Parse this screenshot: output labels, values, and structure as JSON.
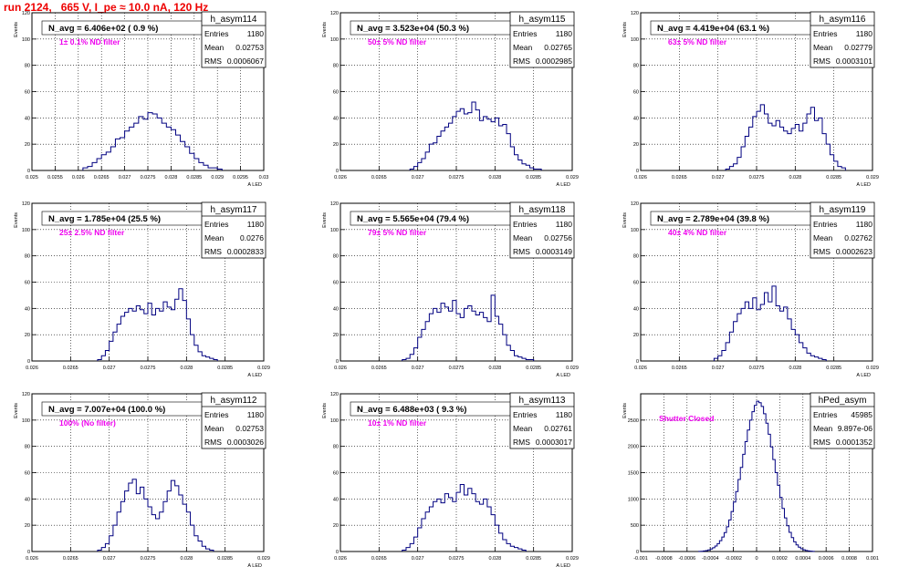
{
  "run_title": "run 2124,   665 V, I_pe ≈ 10.0 nA, 120 Hz",
  "stats_labels": {
    "entries": "Entries",
    "mean": "Mean",
    "rms": "RMS"
  },
  "colors": {
    "hist": "#000080",
    "title": "#ee0000",
    "note": "#ee00ee",
    "grid": "#000000"
  },
  "chart_data": [
    {
      "type": "histogram",
      "name": "h_asym114",
      "title": "N_avg = 6.406e+02 ( 0.9 %)",
      "note": "1± 0.1% ND filter",
      "stats": {
        "entries": "1180",
        "mean": "0.02753",
        "rms": "0.0006067"
      },
      "xlabel": "A_LED",
      "ylabel": "Events",
      "xlim": [
        0.025,
        0.03
      ],
      "ylim": [
        0,
        120
      ],
      "xticks": [
        "0.025",
        "0.0255",
        "0.026",
        "0.0265",
        "0.027",
        "0.0275",
        "0.028",
        "0.0285",
        "0.029",
        "0.0295",
        "0.03"
      ],
      "xtick_values": [
        0.025,
        0.0255,
        0.026,
        0.0265,
        0.027,
        0.0275,
        0.028,
        0.0285,
        0.029,
        0.0295,
        0.03
      ],
      "yticks": [
        0,
        20,
        40,
        60,
        80,
        100,
        120
      ],
      "bins": {
        "start": 0.0261,
        "width": 0.0001,
        "counts": [
          2,
          3,
          6,
          9,
          12,
          14,
          18,
          24,
          25,
          30,
          33,
          36,
          41,
          39,
          44,
          43,
          40,
          36,
          33,
          31,
          27,
          22,
          18,
          13,
          9,
          6,
          4,
          2,
          2,
          1
        ]
      }
    },
    {
      "type": "histogram",
      "name": "h_asym115",
      "title": "N_avg = 3.523e+04 (50.3 %)",
      "note": "50± 5% ND filter",
      "stats": {
        "entries": "1180",
        "mean": "0.02765",
        "rms": "0.0002985"
      },
      "xlabel": "A_LED",
      "ylabel": "Events",
      "xlim": [
        0.026,
        0.029
      ],
      "ylim": [
        0,
        120
      ],
      "xticks": [
        "0.026",
        "0.0265",
        "0.027",
        "0.0275",
        "0.028",
        "0.0285",
        "0.029"
      ],
      "xtick_values": [
        0.026,
        0.0265,
        0.027,
        0.0275,
        0.028,
        0.0285,
        0.029
      ],
      "yticks": [
        0,
        20,
        40,
        60,
        80,
        100,
        120
      ],
      "bins": {
        "start": 0.0269,
        "width": 5e-05,
        "counts": [
          1,
          3,
          6,
          9,
          14,
          20,
          21,
          26,
          30,
          33,
          36,
          41,
          45,
          47,
          43,
          44,
          52,
          46,
          38,
          41,
          39,
          37,
          40,
          34,
          35,
          28,
          18,
          12,
          8,
          5,
          4,
          2,
          1,
          1
        ]
      }
    },
    {
      "type": "histogram",
      "name": "h_asym116",
      "title": "N_avg = 4.419e+04 (63.1 %)",
      "note": "63± 5% ND filter",
      "stats": {
        "entries": "1180",
        "mean": "0.02779",
        "rms": "0.0003101"
      },
      "xlabel": "A_LED",
      "ylabel": "Events",
      "xlim": [
        0.026,
        0.029
      ],
      "ylim": [
        0,
        120
      ],
      "xticks": [
        "0.026",
        "0.0265",
        "0.027",
        "0.0275",
        "0.028",
        "0.0285",
        "0.029"
      ],
      "xtick_values": [
        0.026,
        0.0265,
        0.027,
        0.0275,
        0.028,
        0.0285,
        0.029
      ],
      "yticks": [
        0,
        20,
        40,
        60,
        80,
        100,
        120
      ],
      "bins": {
        "start": 0.0271,
        "width": 5e-05,
        "counts": [
          1,
          3,
          5,
          10,
          18,
          26,
          33,
          41,
          45,
          50,
          43,
          36,
          34,
          38,
          33,
          30,
          28,
          32,
          35,
          30,
          36,
          43,
          48,
          38,
          40,
          28,
          20,
          12,
          7,
          3,
          2
        ]
      }
    },
    {
      "type": "histogram",
      "name": "h_asym117",
      "title": "N_avg = 1.785e+04 (25.5 %)",
      "note": "25± 2.5% ND filter",
      "stats": {
        "entries": "1180",
        "mean": "0.0276",
        "rms": "0.0002833"
      },
      "xlabel": "A_LED",
      "ylabel": "Events",
      "xlim": [
        0.026,
        0.029
      ],
      "ylim": [
        0,
        120
      ],
      "xticks": [
        "0.026",
        "0.0265",
        "0.027",
        "0.0275",
        "0.028",
        "0.0285",
        "0.029"
      ],
      "xtick_values": [
        0.026,
        0.0265,
        0.027,
        0.0275,
        0.028,
        0.0285,
        0.029
      ],
      "yticks": [
        0,
        20,
        40,
        60,
        80,
        100,
        120
      ],
      "bins": {
        "start": 0.02685,
        "width": 5e-05,
        "counts": [
          1,
          4,
          8,
          15,
          22,
          28,
          34,
          37,
          40,
          38,
          42,
          39,
          36,
          44,
          35,
          40,
          38,
          45,
          41,
          39,
          47,
          55,
          46,
          32,
          20,
          12,
          7,
          4,
          3,
          2,
          1
        ]
      }
    },
    {
      "type": "histogram",
      "name": "h_asym118",
      "title": "N_avg = 5.565e+04 (79.4 %)",
      "note": "79± 5% ND filter",
      "stats": {
        "entries": "1180",
        "mean": "0.02756",
        "rms": "0.0003149"
      },
      "xlabel": "A_LED",
      "ylabel": "Events",
      "xlim": [
        0.026,
        0.029
      ],
      "ylim": [
        0,
        120
      ],
      "xticks": [
        "0.026",
        "0.0265",
        "0.027",
        "0.0275",
        "0.028",
        "0.0285",
        "0.029"
      ],
      "xtick_values": [
        0.026,
        0.0265,
        0.027,
        0.0275,
        0.028,
        0.0285,
        0.029
      ],
      "yticks": [
        0,
        20,
        40,
        60,
        80,
        100,
        120
      ],
      "bins": {
        "start": 0.0268,
        "width": 5e-05,
        "counts": [
          1,
          2,
          5,
          10,
          18,
          24,
          30,
          36,
          40,
          37,
          44,
          41,
          38,
          46,
          36,
          33,
          40,
          42,
          38,
          35,
          37,
          33,
          30,
          50,
          34,
          28,
          20,
          12,
          8,
          4,
          3,
          2,
          1,
          1
        ]
      }
    },
    {
      "type": "histogram",
      "name": "h_asym119",
      "title": "N_avg = 2.789e+04 (39.8 %)",
      "note": "40± 4% ND filter",
      "stats": {
        "entries": "1180",
        "mean": "0.02762",
        "rms": "0.0002623"
      },
      "xlabel": "A_LED",
      "ylabel": "Events",
      "xlim": [
        0.026,
        0.029
      ],
      "ylim": [
        0,
        120
      ],
      "xticks": [
        "0.026",
        "0.0265",
        "0.027",
        "0.0275",
        "0.028",
        "0.0285",
        "0.029"
      ],
      "xtick_values": [
        0.026,
        0.0265,
        0.027,
        0.0275,
        0.028,
        0.0285,
        0.029
      ],
      "yticks": [
        0,
        20,
        40,
        60,
        80,
        100,
        120
      ],
      "bins": {
        "start": 0.02695,
        "width": 5e-05,
        "counts": [
          2,
          4,
          8,
          14,
          22,
          30,
          36,
          40,
          45,
          40,
          48,
          39,
          43,
          52,
          45,
          57,
          42,
          38,
          41,
          32,
          24,
          20,
          14,
          10,
          6,
          4,
          3,
          2,
          1
        ]
      }
    },
    {
      "type": "histogram",
      "name": "h_asym112",
      "title": "N_avg = 7.007e+04 (100.0 %)",
      "note": "100% (No filter)",
      "stats": {
        "entries": "1180",
        "mean": "0.02753",
        "rms": "0.0003026"
      },
      "xlabel": "A_LED",
      "ylabel": "Events",
      "xlim": [
        0.026,
        0.029
      ],
      "ylim": [
        0,
        120
      ],
      "xticks": [
        "0.026",
        "0.0265",
        "0.027",
        "0.0275",
        "0.028",
        "0.0285",
        "0.029"
      ],
      "xtick_values": [
        0.026,
        0.0265,
        0.027,
        0.0275,
        0.028,
        0.0285,
        0.029
      ],
      "yticks": [
        0,
        20,
        40,
        60,
        80,
        100,
        120
      ],
      "bins": {
        "start": 0.02685,
        "width": 5e-05,
        "counts": [
          1,
          3,
          6,
          12,
          20,
          30,
          38,
          46,
          52,
          55,
          44,
          49,
          40,
          34,
          28,
          25,
          30,
          38,
          46,
          54,
          50,
          43,
          36,
          30,
          20,
          12,
          8,
          4,
          2,
          1
        ]
      }
    },
    {
      "type": "histogram",
      "name": "h_asym113",
      "title": "N_avg = 6.488e+03 ( 9.3 %)",
      "note": "10± 1% ND filter",
      "stats": {
        "entries": "1180",
        "mean": "0.02761",
        "rms": "0.0003017"
      },
      "xlabel": "A_LED",
      "ylabel": "Events",
      "xlim": [
        0.026,
        0.029
      ],
      "ylim": [
        0,
        120
      ],
      "xticks": [
        "0.026",
        "0.0265",
        "0.027",
        "0.0275",
        "0.028",
        "0.0285",
        "0.029"
      ],
      "xtick_values": [
        0.026,
        0.0265,
        0.027,
        0.0275,
        0.028,
        0.0285,
        0.029
      ],
      "yticks": [
        0,
        20,
        40,
        60,
        80,
        100,
        120
      ],
      "bins": {
        "start": 0.0268,
        "width": 5e-05,
        "counts": [
          1,
          3,
          6,
          11,
          18,
          25,
          30,
          34,
          38,
          40,
          37,
          44,
          41,
          38,
          45,
          51,
          43,
          48,
          44,
          38,
          36,
          40,
          34,
          28,
          20,
          14,
          9,
          6,
          4,
          3,
          2,
          1
        ]
      }
    },
    {
      "type": "histogram",
      "name": "hPed_asym",
      "title": "",
      "note": "Shutter Closed",
      "stats": {
        "entries": "45985",
        "mean": "9.897e-06",
        "rms": "0.0001352"
      },
      "xlabel": "",
      "ylabel": "Events",
      "xlim": [
        -0.001,
        0.001
      ],
      "ylim": [
        0,
        3000
      ],
      "xticks": [
        "-0.001",
        "-0.0008",
        "-0.0006",
        "-0.0004",
        "-0.0002",
        "0",
        "0.0002",
        "0.0004",
        "0.0006",
        "0.0008",
        "0.001"
      ],
      "xtick_values": [
        -0.001,
        -0.0008,
        -0.0006,
        -0.0004,
        -0.0002,
        0,
        0.0002,
        0.0004,
        0.0006,
        0.0008,
        0.001
      ],
      "yticks": [
        0,
        500,
        1000,
        1500,
        2000,
        2500
      ],
      "bins": {
        "start": -0.0005,
        "width": 2e-05,
        "counts": [
          2,
          5,
          10,
          18,
          30,
          48,
          72,
          105,
          150,
          205,
          275,
          360,
          470,
          600,
          760,
          940,
          1140,
          1370,
          1600,
          1850,
          2090,
          2310,
          2500,
          2660,
          2780,
          2860,
          2830,
          2760,
          2620,
          2440,
          2230,
          1990,
          1750,
          1500,
          1260,
          1030,
          820,
          640,
          490,
          365,
          265,
          185,
          125,
          82,
          52,
          32,
          19,
          11,
          6,
          3
        ]
      }
    }
  ]
}
